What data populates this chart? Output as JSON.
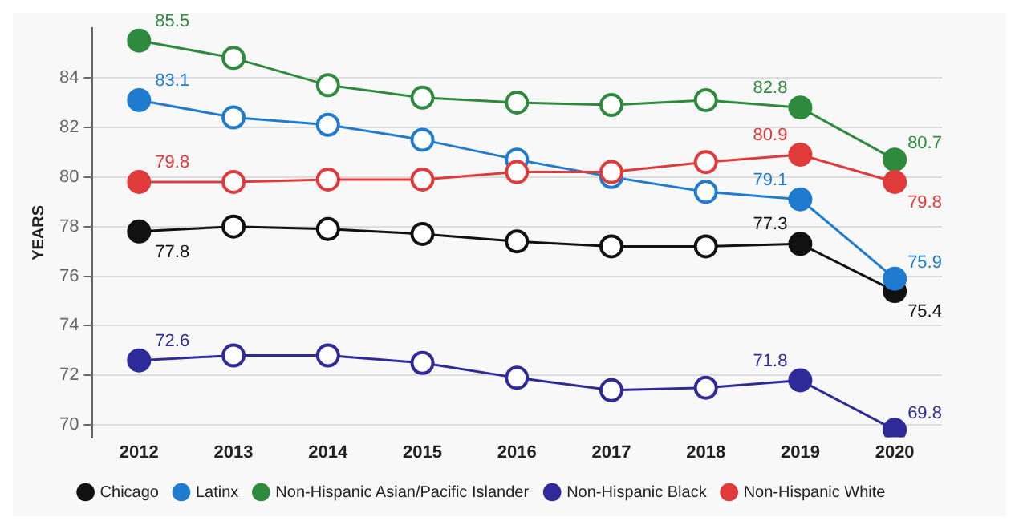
{
  "chart_data": {
    "type": "line",
    "ylabel": "YEARS",
    "categories": [
      "2012",
      "2013",
      "2014",
      "2015",
      "2016",
      "2017",
      "2018",
      "2019",
      "2020"
    ],
    "series": [
      {
        "name": "Chicago",
        "color": "#111111",
        "values": [
          77.8,
          78.0,
          77.9,
          77.7,
          77.4,
          77.2,
          77.2,
          77.3,
          75.4
        ],
        "value_labels": [
          "77.8",
          null,
          null,
          null,
          null,
          null,
          null,
          "77.3",
          "75.4"
        ]
      },
      {
        "name": "Latinx",
        "color": "#1f7bd0",
        "values": [
          83.1,
          82.4,
          82.1,
          81.5,
          80.7,
          80.0,
          79.4,
          79.1,
          75.9
        ],
        "value_labels": [
          "83.1",
          null,
          null,
          null,
          null,
          null,
          null,
          "79.1",
          "75.9"
        ]
      },
      {
        "name": "Non-Hispanic Asian/Pacific Islander",
        "color": "#2e8b3e",
        "values": [
          85.5,
          84.8,
          83.7,
          83.2,
          83.0,
          82.9,
          83.1,
          82.8,
          80.7
        ],
        "value_labels": [
          "85.5",
          null,
          null,
          null,
          null,
          null,
          null,
          "82.8",
          "80.7"
        ]
      },
      {
        "name": "Non-Hispanic Black",
        "color": "#2e2a9a",
        "values": [
          72.6,
          72.8,
          72.8,
          72.5,
          71.9,
          71.4,
          71.5,
          71.8,
          69.8
        ],
        "value_labels": [
          "72.6",
          null,
          null,
          null,
          null,
          null,
          null,
          "71.8",
          "69.8"
        ]
      },
      {
        "name": "Non-Hispanic White",
        "color": "#e03a3a",
        "values": [
          79.8,
          79.8,
          79.9,
          79.9,
          80.2,
          80.2,
          80.6,
          80.9,
          79.8
        ],
        "value_labels": [
          "79.8",
          null,
          null,
          null,
          null,
          null,
          null,
          "80.9",
          "79.8"
        ]
      }
    ],
    "ylim": [
      69.5,
      86
    ],
    "yticks": [
      70,
      72,
      74,
      76,
      78,
      80,
      82,
      84
    ],
    "grid": "y",
    "legend": "bottom",
    "marker": "circle",
    "line_style": "solid"
  }
}
